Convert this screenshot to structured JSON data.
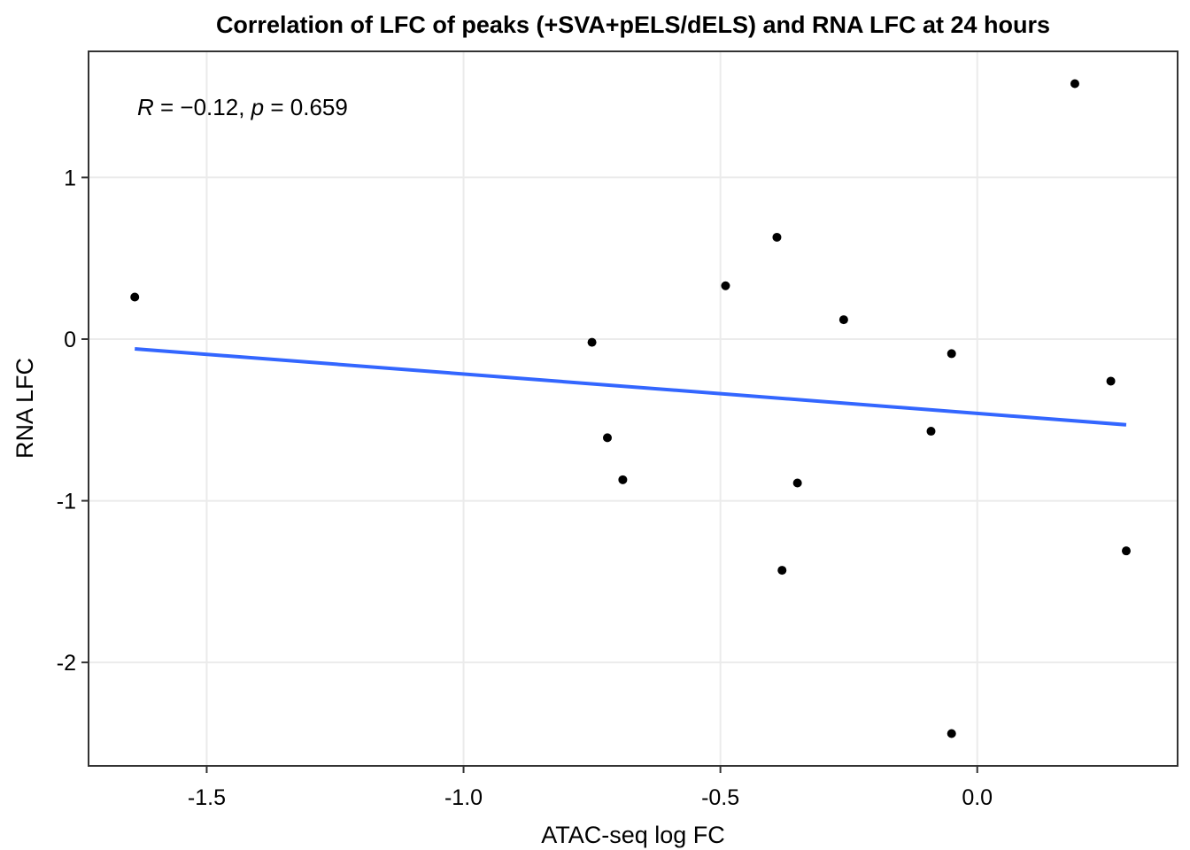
{
  "chart_data": {
    "type": "scatter",
    "title": "Correlation of LFC of peaks (+SVA+pELS/dELS)  and RNA LFC at 24 hours",
    "xlabel": "ATAC-seq log FC",
    "ylabel": "RNA LFC",
    "xlim": [
      -1.73,
      0.39
    ],
    "ylim": [
      -2.64,
      1.78
    ],
    "x_ticks": [
      -1.5,
      -1.0,
      -0.5,
      0.0
    ],
    "x_tick_labels": [
      "-1.5",
      "-1.0",
      "-0.5",
      "0.0"
    ],
    "y_ticks": [
      1,
      0,
      -1,
      -2
    ],
    "y_tick_labels": [
      "1",
      "0",
      "-1",
      "-2"
    ],
    "grid": true,
    "annotation": {
      "r_label": "R",
      "r_rest": " = −0.12, ",
      "p_label": "p",
      "p_rest": " = 0.659"
    },
    "points": [
      {
        "x": -1.64,
        "y": 0.26
      },
      {
        "x": -0.75,
        "y": -0.02
      },
      {
        "x": -0.72,
        "y": -0.61
      },
      {
        "x": -0.69,
        "y": -0.87
      },
      {
        "x": -0.49,
        "y": 0.33
      },
      {
        "x": -0.39,
        "y": 0.63
      },
      {
        "x": -0.38,
        "y": -1.43
      },
      {
        "x": -0.35,
        "y": -0.89
      },
      {
        "x": -0.26,
        "y": 0.12
      },
      {
        "x": -0.09,
        "y": -0.57
      },
      {
        "x": -0.05,
        "y": -0.09
      },
      {
        "x": -0.05,
        "y": -2.44
      },
      {
        "x": 0.19,
        "y": 1.58
      },
      {
        "x": 0.26,
        "y": -0.26
      },
      {
        "x": 0.29,
        "y": -1.31
      }
    ],
    "fit_line": {
      "x": [
        -1.64,
        0.29
      ],
      "y": [
        -0.06,
        -0.53
      ]
    },
    "colors": {
      "points": "#000000",
      "fit_line": "#3366ff",
      "grid": "#ebebeb",
      "panel_border": "#333333"
    }
  }
}
